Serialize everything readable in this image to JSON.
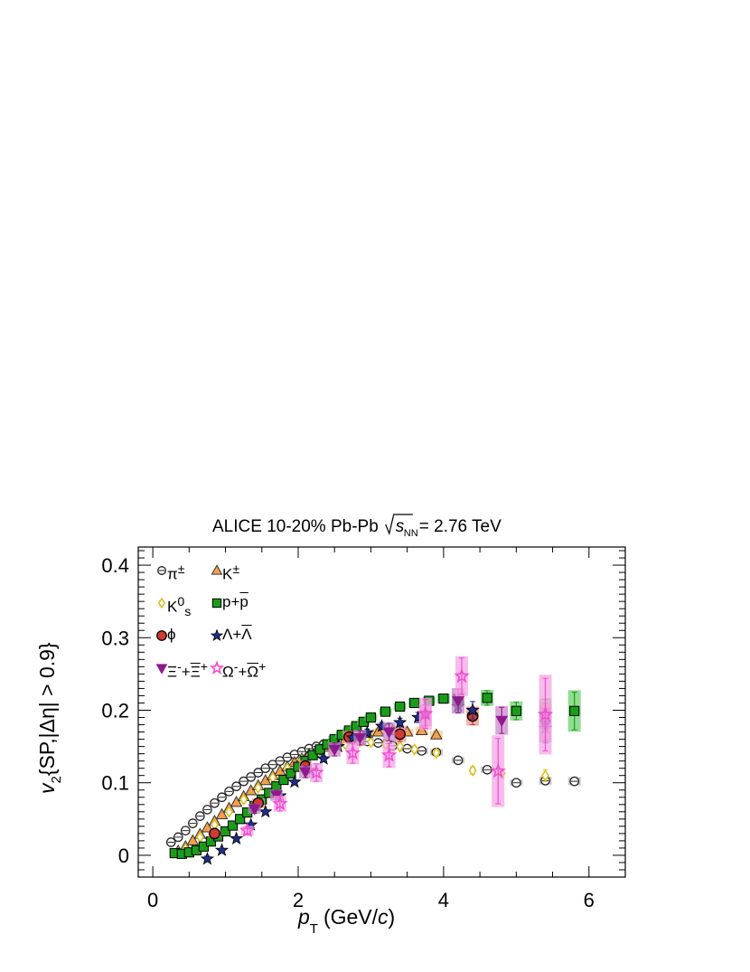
{
  "chart_data": {
    "type": "scatter",
    "title": "ALICE 10-20% Pb-Pb",
    "title_energy_value": "= 2.76 TeV",
    "title_energy_symbol": "s",
    "title_energy_sub": "NN",
    "xlabel": "p",
    "xlabel_sub": "T",
    "xlabel_unit": "(GeV/",
    "xlabel_unit_c": "c",
    "xlabel_unit_close": ")",
    "ylabel_v": "v",
    "ylabel_sub": "2",
    "ylabel_rest": "{SP,|Δη| > 0.9}",
    "xlim": [
      -0.2,
      6.5
    ],
    "ylim": [
      -0.03,
      0.425
    ],
    "xticks": [
      0,
      2,
      4,
      6
    ],
    "yticks": [
      0,
      0.1,
      0.2,
      0.3,
      0.4
    ],
    "ytick_labels": [
      "0",
      "0.1",
      "0.2",
      "0.3",
      "0.4"
    ],
    "grid": false,
    "legend_position": "top-left",
    "series": [
      {
        "name": "π±",
        "label_html": "π<sup>±</sup>",
        "color": "#222222",
        "marker": "circle-open",
        "x": [
          0.25,
          0.35,
          0.45,
          0.55,
          0.65,
          0.75,
          0.85,
          0.95,
          1.05,
          1.15,
          1.25,
          1.35,
          1.45,
          1.55,
          1.65,
          1.75,
          1.85,
          1.95,
          2.05,
          2.15,
          2.25,
          2.35,
          2.45,
          2.55,
          2.65,
          2.75,
          2.85,
          2.95,
          3.1,
          3.3,
          3.5,
          3.7,
          3.9,
          4.2,
          4.6,
          5.0,
          5.4,
          5.8
        ],
        "y": [
          0.018,
          0.025,
          0.034,
          0.044,
          0.054,
          0.063,
          0.072,
          0.08,
          0.088,
          0.095,
          0.102,
          0.108,
          0.114,
          0.12,
          0.125,
          0.13,
          0.135,
          0.139,
          0.143,
          0.147,
          0.15,
          0.153,
          0.155,
          0.157,
          0.158,
          0.159,
          0.158,
          0.157,
          0.155,
          0.151,
          0.147,
          0.144,
          0.142,
          0.131,
          0.118,
          0.1,
          0.103,
          0.102
        ],
        "err": [
          0.002,
          0.002,
          0.002,
          0.002,
          0.002,
          0.002,
          0.002,
          0.002,
          0.002,
          0.002,
          0.002,
          0.002,
          0.002,
          0.002,
          0.002,
          0.002,
          0.002,
          0.002,
          0.002,
          0.002,
          0.002,
          0.002,
          0.002,
          0.002,
          0.002,
          0.002,
          0.002,
          0.002,
          0.003,
          0.003,
          0.003,
          0.003,
          0.003,
          0.004,
          0.004,
          0.004,
          0.005,
          0.005
        ]
      },
      {
        "name": "K±",
        "label_html": "K<sup>±</sup>",
        "color": "#f5a04a",
        "marker": "triangle-up",
        "x": [
          0.35,
          0.45,
          0.55,
          0.65,
          0.75,
          0.85,
          0.95,
          1.05,
          1.15,
          1.25,
          1.35,
          1.45,
          1.55,
          1.65,
          1.75,
          1.85,
          1.95,
          2.05,
          2.15,
          2.25,
          2.35,
          2.45,
          2.55,
          2.65,
          2.75,
          2.85,
          2.95,
          3.1,
          3.3,
          3.5,
          3.7,
          3.9
        ],
        "y": [
          0.006,
          0.012,
          0.02,
          0.029,
          0.038,
          0.047,
          0.056,
          0.065,
          0.073,
          0.081,
          0.089,
          0.096,
          0.103,
          0.11,
          0.116,
          0.122,
          0.128,
          0.133,
          0.139,
          0.144,
          0.149,
          0.153,
          0.157,
          0.16,
          0.163,
          0.166,
          0.168,
          0.17,
          0.172,
          0.17,
          0.172,
          0.166
        ],
        "err": [
          0.002,
          0.002,
          0.002,
          0.002,
          0.002,
          0.002,
          0.002,
          0.002,
          0.002,
          0.002,
          0.002,
          0.002,
          0.002,
          0.002,
          0.002,
          0.002,
          0.002,
          0.002,
          0.002,
          0.002,
          0.002,
          0.002,
          0.003,
          0.003,
          0.003,
          0.003,
          0.003,
          0.004,
          0.004,
          0.004,
          0.005,
          0.005
        ]
      },
      {
        "name": "K0s",
        "label_html": "K<sup>0</sup><sub>s</sub>",
        "color": "#d9c022",
        "marker": "diamond-open",
        "x": [
          0.45,
          0.65,
          0.85,
          1.05,
          1.25,
          1.45,
          1.65,
          1.85,
          2.05,
          2.25,
          2.45,
          2.65,
          2.85,
          3.0,
          3.2,
          3.4,
          3.6,
          3.9,
          4.4,
          4.8,
          5.4
        ],
        "y": [
          0.009,
          0.025,
          0.042,
          0.06,
          0.077,
          0.093,
          0.107,
          0.12,
          0.131,
          0.14,
          0.148,
          0.153,
          0.157,
          0.156,
          0.153,
          0.15,
          0.146,
          0.141,
          0.117,
          0.113,
          0.11
        ],
        "err": [
          0.002,
          0.002,
          0.002,
          0.002,
          0.002,
          0.002,
          0.002,
          0.002,
          0.002,
          0.002,
          0.002,
          0.002,
          0.002,
          0.003,
          0.003,
          0.003,
          0.004,
          0.004,
          0.005,
          0.006,
          0.008
        ]
      },
      {
        "name": "p+p̄",
        "label_html": "p+<span style=\"text-decoration:overline\">p</span>",
        "color": "#1a9c1a",
        "marker": "square",
        "x": [
          0.3,
          0.4,
          0.5,
          0.6,
          0.7,
          0.8,
          0.9,
          1.0,
          1.1,
          1.2,
          1.3,
          1.4,
          1.5,
          1.6,
          1.7,
          1.8,
          1.9,
          2.0,
          2.1,
          2.2,
          2.3,
          2.4,
          2.5,
          2.6,
          2.7,
          2.8,
          2.9,
          3.0,
          3.2,
          3.4,
          3.6,
          3.8,
          4.0,
          4.2,
          4.6,
          5.0,
          5.4,
          5.8
        ],
        "y": [
          0.003,
          0.002,
          0.004,
          0.007,
          0.012,
          0.019,
          0.026,
          0.033,
          0.041,
          0.05,
          0.059,
          0.068,
          0.077,
          0.086,
          0.095,
          0.104,
          0.113,
          0.122,
          0.13,
          0.138,
          0.146,
          0.153,
          0.16,
          0.166,
          0.172,
          0.178,
          0.184,
          0.19,
          0.198,
          0.205,
          0.21,
          0.213,
          0.216,
          0.215,
          0.217,
          0.199,
          0.197,
          0.199
        ],
        "err": [
          0.002,
          0.002,
          0.002,
          0.002,
          0.002,
          0.002,
          0.002,
          0.002,
          0.002,
          0.002,
          0.002,
          0.002,
          0.002,
          0.002,
          0.002,
          0.002,
          0.002,
          0.002,
          0.002,
          0.002,
          0.002,
          0.002,
          0.003,
          0.003,
          0.003,
          0.003,
          0.003,
          0.003,
          0.004,
          0.004,
          0.005,
          0.005,
          0.006,
          0.008,
          0.01,
          0.012,
          0.018,
          0.026
        ]
      },
      {
        "name": "ϕ",
        "label_html": "ϕ",
        "color": "#d03a32",
        "marker": "circle",
        "x": [
          0.85,
          1.45,
          2.1,
          2.7,
          3.4,
          4.4,
          5.4
        ],
        "y": [
          0.03,
          0.072,
          0.123,
          0.163,
          0.167,
          0.192,
          0.194
        ],
        "err": [
          0.005,
          0.006,
          0.007,
          0.008,
          0.01,
          0.012,
          0.015
        ]
      },
      {
        "name": "Λ+Λ̄",
        "label_html": "Λ+<span style=\"text-decoration:overline\">Λ</span>",
        "color": "#1e2f8a",
        "marker": "star",
        "x": [
          0.75,
          0.95,
          1.15,
          1.35,
          1.55,
          1.75,
          1.95,
          2.15,
          2.35,
          2.55,
          2.75,
          2.95,
          3.15,
          3.4,
          3.65,
          4.2,
          4.4,
          5.4
        ],
        "y": [
          -0.005,
          0.007,
          0.023,
          0.042,
          0.06,
          0.082,
          0.101,
          0.117,
          0.133,
          0.15,
          0.162,
          0.169,
          0.178,
          0.183,
          0.19,
          0.205,
          0.2,
          0.175
        ],
        "err": [
          0.004,
          0.003,
          0.003,
          0.003,
          0.003,
          0.003,
          0.003,
          0.003,
          0.004,
          0.004,
          0.004,
          0.005,
          0.005,
          0.006,
          0.007,
          0.009,
          0.012,
          0.02
        ]
      },
      {
        "name": "Ξ-+Ξ̄+",
        "label_html": "Ξ<sup>-</sup>+<span style=\"text-decoration:overline\">Ξ</span><sup>+</sup>",
        "color": "#8e1a8e",
        "marker": "triangle-down",
        "x": [
          1.4,
          1.7,
          2.1,
          2.5,
          2.85,
          3.25,
          3.75,
          4.2,
          4.8,
          5.4
        ],
        "y": [
          0.064,
          0.083,
          0.115,
          0.146,
          0.162,
          0.17,
          0.193,
          0.213,
          0.186,
          0.18
        ],
        "err": [
          0.006,
          0.007,
          0.008,
          0.009,
          0.01,
          0.012,
          0.014,
          0.016,
          0.018,
          0.022
        ]
      },
      {
        "name": "Ω-+Ω̄+",
        "label_html": "Ω<sup>-</sup>+<span style=\"text-decoration:overline\">Ω</span><sup>+</sup>",
        "color": "#f04fd0",
        "marker": "star-open",
        "x": [
          1.3,
          1.75,
          2.25,
          2.75,
          3.25,
          3.75,
          4.25,
          4.75,
          5.4
        ],
        "y": [
          0.034,
          0.071,
          0.114,
          0.141,
          0.138,
          0.195,
          0.247,
          0.116,
          0.194
        ],
        "err": [
          0.006,
          0.01,
          0.012,
          0.014,
          0.016,
          0.02,
          0.025,
          0.045,
          0.05
        ]
      }
    ]
  }
}
